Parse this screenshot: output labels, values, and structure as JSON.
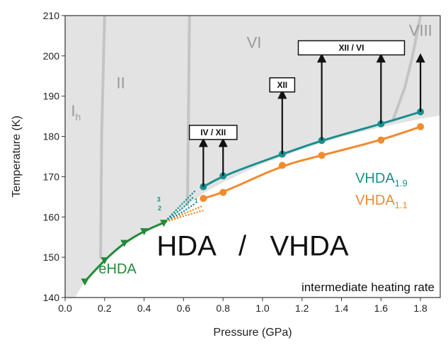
{
  "chart_data": {
    "type": "line",
    "title": "",
    "xlabel": "Pressure (GPa)",
    "ylabel": "Temperature (K)",
    "xlim": [
      0.0,
      1.9
    ],
    "ylim": [
      140,
      210
    ],
    "xticks": [
      "0.0",
      "0.2",
      "0.4",
      "0.6",
      "0.8",
      "1.0",
      "1.2",
      "1.4",
      "1.6",
      "1.8"
    ],
    "yticks": [
      "140",
      "150",
      "160",
      "170",
      "180",
      "190",
      "200",
      "210"
    ],
    "grid": false,
    "colors": {
      "vhda19": "#1b8f8f",
      "vhda11": "#f28a2e",
      "ehda": "#238a3a",
      "shade": "#e3e3e3",
      "boundary": "#c4c4c4",
      "phase_text": "#9a9a9a"
    },
    "phase_labels": [
      {
        "text": "I",
        "sub": "h",
        "x": 0.03,
        "y": 185
      },
      {
        "text": "II",
        "x": 0.26,
        "y": 192
      },
      {
        "text": "VI",
        "x": 0.92,
        "y": 202
      },
      {
        "text": "VIII",
        "x": 1.86,
        "y": 205
      }
    ],
    "series": [
      {
        "name": "VHDA",
        "sub": "1.9",
        "color": "#1b8f8f",
        "marker": "circle",
        "x": [
          0.7,
          0.8,
          1.1,
          1.3,
          1.6,
          1.8
        ],
        "y": [
          167.5,
          170.2,
          175.6,
          179.0,
          183.1,
          186.1
        ]
      },
      {
        "name": "VHDA",
        "sub": "1.1",
        "color": "#f28a2e",
        "marker": "circle",
        "x": [
          0.7,
          0.8,
          1.1,
          1.3,
          1.6,
          1.8
        ],
        "y": [
          164.6,
          166.1,
          172.8,
          175.3,
          179.1,
          182.4
        ]
      },
      {
        "name": "eHDA",
        "color": "#238a3a",
        "marker": "triangle-down",
        "x": [
          0.1,
          0.2,
          0.3,
          0.4,
          0.5
        ],
        "y": [
          144.0,
          149.3,
          153.6,
          156.5,
          158.6
        ]
      }
    ],
    "dotted_lines": {
      "labels": [
        "3",
        "2",
        "1"
      ]
    },
    "arrows": [
      {
        "x": 0.7,
        "from": 167.5,
        "to": 178.5
      },
      {
        "x": 0.8,
        "from": 170.2,
        "to": 178.5
      },
      {
        "x": 1.1,
        "from": 175.6,
        "to": 190.5
      },
      {
        "x": 1.3,
        "from": 179.0,
        "to": 199.5
      },
      {
        "x": 1.6,
        "from": 183.1,
        "to": 199.5
      },
      {
        "x": 1.8,
        "from": 186.1,
        "to": 199.5
      }
    ],
    "boxes": [
      {
        "text": "IV / XII",
        "x_center": 0.75,
        "y_center": 181.0
      },
      {
        "text": "XII",
        "x_center": 1.1,
        "y_center": 192.8
      },
      {
        "text": "XII / VI",
        "x_center": 1.45,
        "y_center": 202.0
      }
    ],
    "annotations": {
      "region": "HDA   /   VHDA",
      "rate": "intermediate heating rate"
    }
  }
}
